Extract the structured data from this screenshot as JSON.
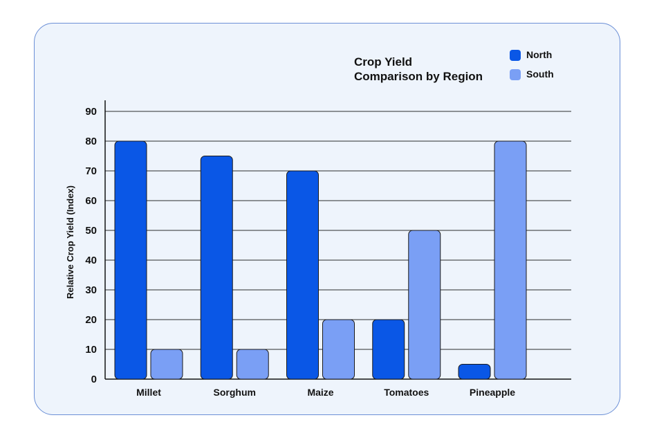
{
  "chart_data": {
    "type": "bar",
    "title": [
      "Crop Yield",
      "Comparison by Region"
    ],
    "xlabel": "",
    "ylabel": "Relative Crop Yield (Index)",
    "ylim": [
      0,
      90
    ],
    "yticks": [
      0,
      10,
      20,
      30,
      40,
      50,
      60,
      70,
      80,
      90
    ],
    "categories": [
      "Millet",
      "Sorghum",
      "Maize",
      "Tomatoes",
      "Pineapple"
    ],
    "series": [
      {
        "name": "North",
        "color": "#0a57e6",
        "values": [
          80,
          75,
          70,
          20,
          5
        ]
      },
      {
        "name": "South",
        "color": "#7a9ff5",
        "values": [
          10,
          10,
          20,
          50,
          80
        ]
      }
    ],
    "grid": true,
    "legend_position": "top-right"
  }
}
